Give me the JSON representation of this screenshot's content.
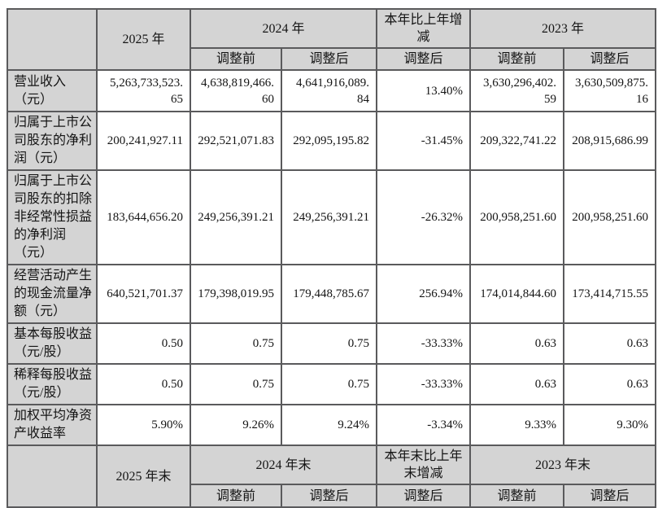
{
  "colors": {
    "header_bg": "#d4d4d4",
    "border": "#5a5a5c",
    "page_bg": "#ffffff"
  },
  "table": {
    "top_header": {
      "y2025": "2025 年",
      "y2024": "2024 年",
      "change": "本年比上年增减",
      "y2023": "2023 年"
    },
    "top_sub": [
      "调整前",
      "调整后",
      "调整后",
      "调整前",
      "调整后"
    ],
    "rows": [
      {
        "label": "营业收入（元）",
        "values": [
          "5,263,733,523.65",
          "4,638,819,466.60",
          "4,641,916,089.84",
          "13.40%",
          "3,630,296,402.59",
          "3,630,509,875.16"
        ]
      },
      {
        "label": "归属于上市公司股东的净利润（元）",
        "values": [
          "200,241,927.11",
          "292,521,071.83",
          "292,095,195.82",
          "-31.45%",
          "209,322,741.22",
          "208,915,686.99"
        ]
      },
      {
        "label": "归属于上市公司股东的扣除非经常性损益的净利润（元）",
        "values": [
          "183,644,656.20",
          "249,256,391.21",
          "249,256,391.21",
          "-26.32%",
          "200,958,251.60",
          "200,958,251.60"
        ]
      },
      {
        "label": "经营活动产生的现金流量净额（元）",
        "values": [
          "640,521,701.37",
          "179,398,019.95",
          "179,448,785.67",
          "256.94%",
          "174,014,844.60",
          "173,414,715.55"
        ]
      },
      {
        "label": "基本每股收益（元/股）",
        "values": [
          "0.50",
          "0.75",
          "0.75",
          "-33.33%",
          "0.63",
          "0.63"
        ]
      },
      {
        "label": "稀释每股收益（元/股）",
        "values": [
          "0.50",
          "0.75",
          "0.75",
          "-33.33%",
          "0.63",
          "0.63"
        ]
      },
      {
        "label": "加权平均净资产收益率",
        "values": [
          "5.90%",
          "9.26%",
          "9.24%",
          "-3.34%",
          "9.33%",
          "9.30%"
        ]
      }
    ],
    "bottom_header": {
      "y2025": "2025 年末",
      "y2024": "2024 年末",
      "change": "本年末比上年末增减",
      "y2023": "2023 年末"
    },
    "bottom_sub": [
      "调整前",
      "调整后",
      "调整后",
      "调整前",
      "调整后"
    ]
  }
}
